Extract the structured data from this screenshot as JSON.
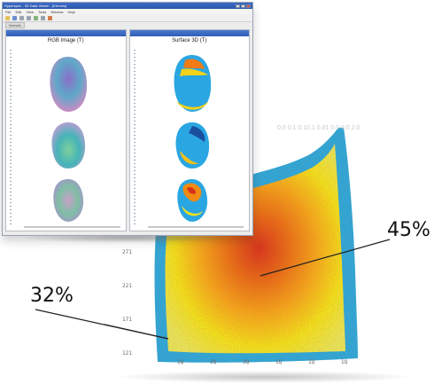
{
  "window": {
    "title": "Hyperspec - 3D Data Viewer - [Kernels]",
    "menu": [
      "File",
      "Edit",
      "View",
      "Tools",
      "Window",
      "Help"
    ],
    "toolbar_icons": [
      "open-icon",
      "save-icon",
      "zoom-icon",
      "pan-icon",
      "rotate-icon",
      "select-icon",
      "color-icon"
    ],
    "tab_label": "Kernels"
  },
  "panes": [
    {
      "title": "RGB Image (T)",
      "style": "rgb"
    },
    {
      "title": "Surface 3D (T)",
      "style": "surface"
    }
  ],
  "heatmap": {
    "y_ticks": [
      "271",
      "221",
      "171",
      "121"
    ],
    "x_ticks": [
      "1Q",
      "2Q",
      "3Q",
      "1Q",
      "1Q",
      "1Q"
    ],
    "faint_labels": [
      "0.0    0.1 0.1",
      "0.1 0.01 0.0 0.0 2.0"
    ]
  },
  "callouts": {
    "center": "45%",
    "edge": "32%"
  },
  "colors": {
    "yellow": "#f2e21a",
    "orange": "#f08a12",
    "red": "#d6301a",
    "cyan": "#27a8e0",
    "blue": "#1f5fb8"
  }
}
